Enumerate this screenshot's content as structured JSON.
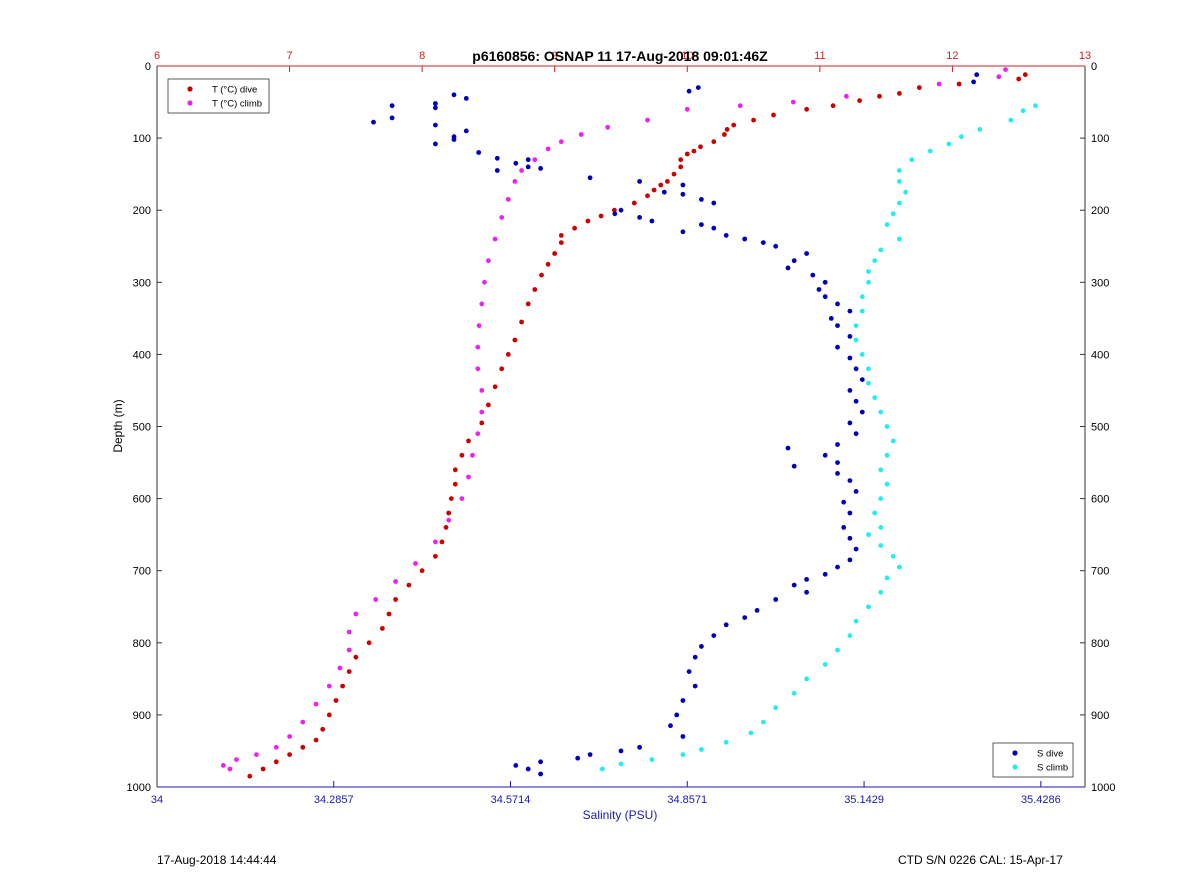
{
  "chart_data": {
    "type": "scatter",
    "title": "p6160856: OSNAP 11 17-Aug-2018 09:01:46Z",
    "ylabel": "Depth (m)",
    "xlabel_bottom": "Salinity (PSU)",
    "ylim": [
      0,
      1000
    ],
    "y_reversed": true,
    "y_ticks": [
      "0",
      "100",
      "200",
      "300",
      "400",
      "500",
      "600",
      "700",
      "800",
      "900",
      "1000"
    ],
    "top_axis": {
      "range": [
        6,
        13
      ],
      "ticks": [
        "6",
        "7",
        "8",
        "9",
        "10",
        "11",
        "12",
        "13"
      ],
      "color": "#cc2222"
    },
    "bottom_axis": {
      "range": [
        34,
        35.5
      ],
      "ticks": [
        "34",
        "34.2857",
        "34.5714",
        "34.8571",
        "35.1429",
        "35.4286"
      ],
      "color": "#1a1aaa"
    },
    "grid": true,
    "legend_top": {
      "placement": "top-left",
      "entries": [
        {
          "label": "T (°C) dive",
          "color": "#cc0000"
        },
        {
          "label": "T (°C) climb",
          "color": "#ee22ee"
        }
      ]
    },
    "legend_bottom": {
      "placement": "bottom-right",
      "entries": [
        {
          "label": "S dive",
          "color": "#0000bb"
        },
        {
          "label": "S climb",
          "color": "#22eeee"
        }
      ]
    },
    "series": [
      {
        "name": "T (°C) dive",
        "axis": "top",
        "color": "#cc0000",
        "points": [
          [
            12.55,
            12
          ],
          [
            12.5,
            18
          ],
          [
            12.05,
            25
          ],
          [
            11.75,
            30
          ],
          [
            11.6,
            38
          ],
          [
            11.45,
            42
          ],
          [
            11.3,
            48
          ],
          [
            11.1,
            55
          ],
          [
            10.9,
            60
          ],
          [
            10.65,
            68
          ],
          [
            10.5,
            75
          ],
          [
            10.35,
            82
          ],
          [
            10.3,
            88
          ],
          [
            10.28,
            95
          ],
          [
            10.2,
            105
          ],
          [
            10.1,
            112
          ],
          [
            10.05,
            118
          ],
          [
            10.0,
            122
          ],
          [
            9.95,
            130
          ],
          [
            9.95,
            140
          ],
          [
            9.9,
            150
          ],
          [
            9.85,
            160
          ],
          [
            9.8,
            165
          ],
          [
            9.75,
            172
          ],
          [
            9.7,
            180
          ],
          [
            9.6,
            190
          ],
          [
            9.45,
            200
          ],
          [
            9.35,
            208
          ],
          [
            9.25,
            215
          ],
          [
            9.15,
            225
          ],
          [
            9.05,
            235
          ],
          [
            9.05,
            245
          ],
          [
            9.0,
            260
          ],
          [
            8.95,
            275
          ],
          [
            8.9,
            290
          ],
          [
            8.85,
            310
          ],
          [
            8.8,
            330
          ],
          [
            8.75,
            355
          ],
          [
            8.7,
            380
          ],
          [
            8.65,
            400
          ],
          [
            8.6,
            420
          ],
          [
            8.55,
            445
          ],
          [
            8.5,
            470
          ],
          [
            8.45,
            495
          ],
          [
            8.35,
            520
          ],
          [
            8.3,
            540
          ],
          [
            8.25,
            560
          ],
          [
            8.25,
            580
          ],
          [
            8.22,
            600
          ],
          [
            8.2,
            620
          ],
          [
            8.18,
            640
          ],
          [
            8.15,
            660
          ],
          [
            8.1,
            680
          ],
          [
            8.0,
            700
          ],
          [
            7.9,
            720
          ],
          [
            7.8,
            740
          ],
          [
            7.75,
            760
          ],
          [
            7.7,
            780
          ],
          [
            7.6,
            800
          ],
          [
            7.5,
            820
          ],
          [
            7.45,
            840
          ],
          [
            7.4,
            860
          ],
          [
            7.35,
            880
          ],
          [
            7.3,
            900
          ],
          [
            7.25,
            920
          ],
          [
            7.2,
            935
          ],
          [
            7.1,
            945
          ],
          [
            7.0,
            955
          ],
          [
            6.9,
            965
          ],
          [
            6.8,
            975
          ],
          [
            6.7,
            985
          ]
        ]
      },
      {
        "name": "T (°C) climb",
        "axis": "top",
        "color": "#ee22ee",
        "points": [
          [
            12.4,
            5
          ],
          [
            12.35,
            15
          ],
          [
            11.9,
            25
          ],
          [
            11.2,
            42
          ],
          [
            10.8,
            50
          ],
          [
            10.4,
            55
          ],
          [
            10.0,
            60
          ],
          [
            9.7,
            75
          ],
          [
            9.4,
            85
          ],
          [
            9.2,
            95
          ],
          [
            9.05,
            105
          ],
          [
            8.95,
            115
          ],
          [
            8.85,
            130
          ],
          [
            8.75,
            145
          ],
          [
            8.7,
            160
          ],
          [
            8.65,
            185
          ],
          [
            8.6,
            210
          ],
          [
            8.55,
            240
          ],
          [
            8.5,
            270
          ],
          [
            8.47,
            300
          ],
          [
            8.45,
            330
          ],
          [
            8.43,
            360
          ],
          [
            8.42,
            390
          ],
          [
            8.42,
            420
          ],
          [
            8.45,
            450
          ],
          [
            8.45,
            480
          ],
          [
            8.42,
            510
          ],
          [
            8.38,
            540
          ],
          [
            8.35,
            570
          ],
          [
            8.3,
            600
          ],
          [
            8.2,
            630
          ],
          [
            8.1,
            660
          ],
          [
            7.95,
            690
          ],
          [
            7.8,
            715
          ],
          [
            7.65,
            740
          ],
          [
            7.5,
            760
          ],
          [
            7.45,
            785
          ],
          [
            7.45,
            810
          ],
          [
            7.38,
            835
          ],
          [
            7.3,
            860
          ],
          [
            7.2,
            885
          ],
          [
            7.1,
            910
          ],
          [
            7.0,
            930
          ],
          [
            6.9,
            945
          ],
          [
            6.75,
            955
          ],
          [
            6.6,
            962
          ],
          [
            6.5,
            970
          ],
          [
            6.55,
            975
          ]
        ]
      },
      {
        "name": "S dive",
        "axis": "bottom",
        "color": "#0000bb",
        "points": [
          [
            35.325,
            12
          ],
          [
            35.32,
            22
          ],
          [
            34.875,
            30
          ],
          [
            34.86,
            35
          ],
          [
            34.48,
            40
          ],
          [
            34.5,
            45
          ],
          [
            34.45,
            52
          ],
          [
            34.45,
            58
          ],
          [
            34.38,
            55
          ],
          [
            34.38,
            72
          ],
          [
            34.35,
            78
          ],
          [
            34.45,
            82
          ],
          [
            34.5,
            90
          ],
          [
            34.48,
            98
          ],
          [
            34.48,
            102
          ],
          [
            34.45,
            108
          ],
          [
            34.52,
            120
          ],
          [
            34.55,
            128
          ],
          [
            34.6,
            130
          ],
          [
            34.58,
            135
          ],
          [
            34.6,
            140
          ],
          [
            34.62,
            142
          ],
          [
            34.55,
            145
          ],
          [
            34.7,
            155
          ],
          [
            34.78,
            160
          ],
          [
            34.85,
            165
          ],
          [
            34.82,
            175
          ],
          [
            34.85,
            178
          ],
          [
            34.88,
            185
          ],
          [
            34.9,
            190
          ],
          [
            34.75,
            200
          ],
          [
            34.74,
            205
          ],
          [
            34.78,
            210
          ],
          [
            34.8,
            215
          ],
          [
            34.88,
            220
          ],
          [
            34.9,
            225
          ],
          [
            34.85,
            230
          ],
          [
            34.92,
            235
          ],
          [
            34.95,
            240
          ],
          [
            34.98,
            245
          ],
          [
            35.0,
            250
          ],
          [
            35.05,
            260
          ],
          [
            35.03,
            270
          ],
          [
            35.02,
            280
          ],
          [
            35.06,
            290
          ],
          [
            35.08,
            300
          ],
          [
            35.07,
            310
          ],
          [
            35.08,
            320
          ],
          [
            35.1,
            330
          ],
          [
            35.12,
            340
          ],
          [
            35.09,
            350
          ],
          [
            35.1,
            360
          ],
          [
            35.12,
            375
          ],
          [
            35.1,
            390
          ],
          [
            35.12,
            405
          ],
          [
            35.13,
            420
          ],
          [
            35.14,
            435
          ],
          [
            35.12,
            450
          ],
          [
            35.13,
            465
          ],
          [
            35.14,
            480
          ],
          [
            35.12,
            495
          ],
          [
            35.13,
            510
          ],
          [
            35.1,
            525
          ],
          [
            35.02,
            530
          ],
          [
            35.08,
            540
          ],
          [
            35.1,
            550
          ],
          [
            35.03,
            555
          ],
          [
            35.1,
            565
          ],
          [
            35.12,
            575
          ],
          [
            35.13,
            590
          ],
          [
            35.11,
            605
          ],
          [
            35.12,
            620
          ],
          [
            35.11,
            640
          ],
          [
            35.12,
            655
          ],
          [
            35.13,
            670
          ],
          [
            35.12,
            685
          ],
          [
            35.1,
            695
          ],
          [
            35.08,
            705
          ],
          [
            35.05,
            712
          ],
          [
            35.03,
            720
          ],
          [
            35.05,
            730
          ],
          [
            35.0,
            740
          ],
          [
            34.97,
            755
          ],
          [
            34.95,
            765
          ],
          [
            34.92,
            775
          ],
          [
            34.9,
            790
          ],
          [
            34.88,
            805
          ],
          [
            34.87,
            820
          ],
          [
            34.86,
            840
          ],
          [
            34.87,
            860
          ],
          [
            34.85,
            880
          ],
          [
            34.84,
            900
          ],
          [
            34.83,
            915
          ],
          [
            34.85,
            930
          ],
          [
            34.78,
            945
          ],
          [
            34.75,
            950
          ],
          [
            34.7,
            955
          ],
          [
            34.68,
            960
          ],
          [
            34.62,
            965
          ],
          [
            34.58,
            970
          ],
          [
            34.6,
            975
          ],
          [
            34.62,
            982
          ]
        ]
      },
      {
        "name": "S climb",
        "axis": "bottom",
        "color": "#22eeee",
        "points": [
          [
            35.42,
            55
          ],
          [
            35.4,
            62
          ],
          [
            35.38,
            75
          ],
          [
            35.33,
            88
          ],
          [
            35.3,
            98
          ],
          [
            35.28,
            108
          ],
          [
            35.25,
            118
          ],
          [
            35.22,
            130
          ],
          [
            35.2,
            145
          ],
          [
            35.2,
            160
          ],
          [
            35.21,
            175
          ],
          [
            35.2,
            190
          ],
          [
            35.19,
            205
          ],
          [
            35.18,
            220
          ],
          [
            35.2,
            240
          ],
          [
            35.17,
            255
          ],
          [
            35.16,
            270
          ],
          [
            35.15,
            285
          ],
          [
            35.15,
            300
          ],
          [
            35.14,
            320
          ],
          [
            35.14,
            340
          ],
          [
            35.13,
            360
          ],
          [
            35.13,
            380
          ],
          [
            35.14,
            400
          ],
          [
            35.15,
            420
          ],
          [
            35.15,
            440
          ],
          [
            35.16,
            460
          ],
          [
            35.17,
            480
          ],
          [
            35.18,
            500
          ],
          [
            35.19,
            520
          ],
          [
            35.18,
            540
          ],
          [
            35.17,
            560
          ],
          [
            35.18,
            580
          ],
          [
            35.17,
            600
          ],
          [
            35.16,
            620
          ],
          [
            35.17,
            640
          ],
          [
            35.15,
            650
          ],
          [
            35.17,
            665
          ],
          [
            35.19,
            680
          ],
          [
            35.2,
            695
          ],
          [
            35.18,
            710
          ],
          [
            35.17,
            730
          ],
          [
            35.15,
            750
          ],
          [
            35.13,
            770
          ],
          [
            35.12,
            790
          ],
          [
            35.1,
            810
          ],
          [
            35.08,
            830
          ],
          [
            35.05,
            850
          ],
          [
            35.03,
            870
          ],
          [
            35.0,
            890
          ],
          [
            34.98,
            910
          ],
          [
            34.96,
            925
          ],
          [
            34.92,
            938
          ],
          [
            34.88,
            948
          ],
          [
            34.85,
            955
          ],
          [
            34.8,
            962
          ],
          [
            34.75,
            968
          ],
          [
            34.72,
            975
          ]
        ]
      }
    ]
  },
  "footer": {
    "left": "17-Aug-2018 14:44:44",
    "right": "CTD S/N 0226  CAL: 15-Apr-17"
  }
}
